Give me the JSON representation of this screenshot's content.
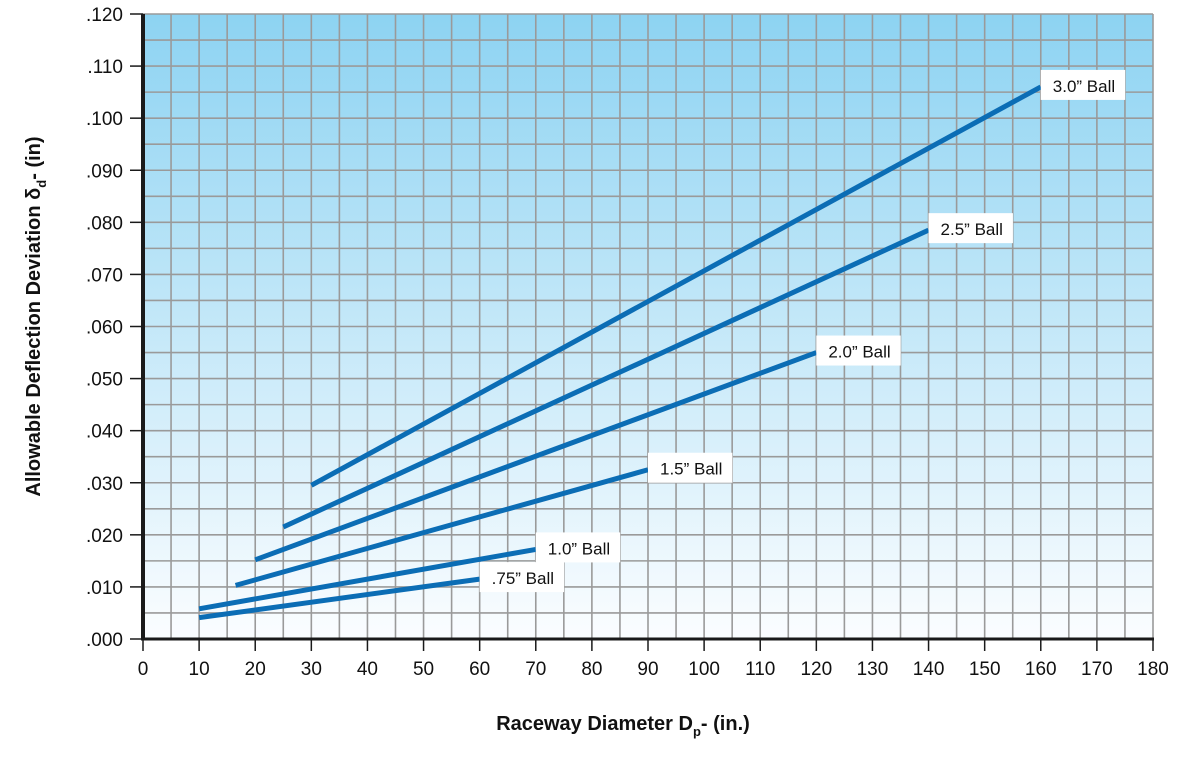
{
  "chart_data": {
    "type": "line",
    "x_axis": {
      "title_main": "Raceway Diameter D",
      "title_sub": "p",
      "title_suffix": "- (in.)",
      "range": [
        0,
        180
      ],
      "ticks": [
        "0",
        "10",
        "20",
        "30",
        "40",
        "50",
        "60",
        "70",
        "80",
        "90",
        "100",
        "110",
        "120",
        "130",
        "140",
        "150",
        "160",
        "170",
        "180"
      ]
    },
    "y_axis": {
      "title_main": "Allowable Deflection Deviation δ",
      "title_sub": "d",
      "title_suffix": "- (in)",
      "range": [
        0,
        0.12
      ],
      "ticks": [
        ".000",
        ".010",
        ".020",
        ".030",
        ".040",
        ".050",
        ".060",
        ".070",
        ".080",
        ".090",
        ".100",
        ".110",
        ".120"
      ]
    },
    "grid": true,
    "series": [
      {
        "name": "3.0” Ball",
        "x": [
          30,
          160
        ],
        "y": [
          0.0295,
          0.106
        ]
      },
      {
        "name": "2.5” Ball",
        "x": [
          25,
          140
        ],
        "y": [
          0.0215,
          0.0785
        ]
      },
      {
        "name": "2.0” Ball",
        "x": [
          20,
          120
        ],
        "y": [
          0.0152,
          0.055
        ]
      },
      {
        "name": "1.5” Ball",
        "x": [
          16.5,
          90
        ],
        "y": [
          0.0103,
          0.0325
        ]
      },
      {
        "name": "1.0” Ball",
        "x": [
          10,
          70
        ],
        "y": [
          0.0058,
          0.0172
        ]
      },
      {
        "name": ".75” Ball",
        "x": [
          10,
          60
        ],
        "y": [
          0.0041,
          0.0115
        ]
      }
    ],
    "colors": {
      "line": "#0b6db5",
      "grid": "#9a9a9a",
      "background_top": "#8dd3f2",
      "background_bottom": "#fbfdff"
    }
  }
}
